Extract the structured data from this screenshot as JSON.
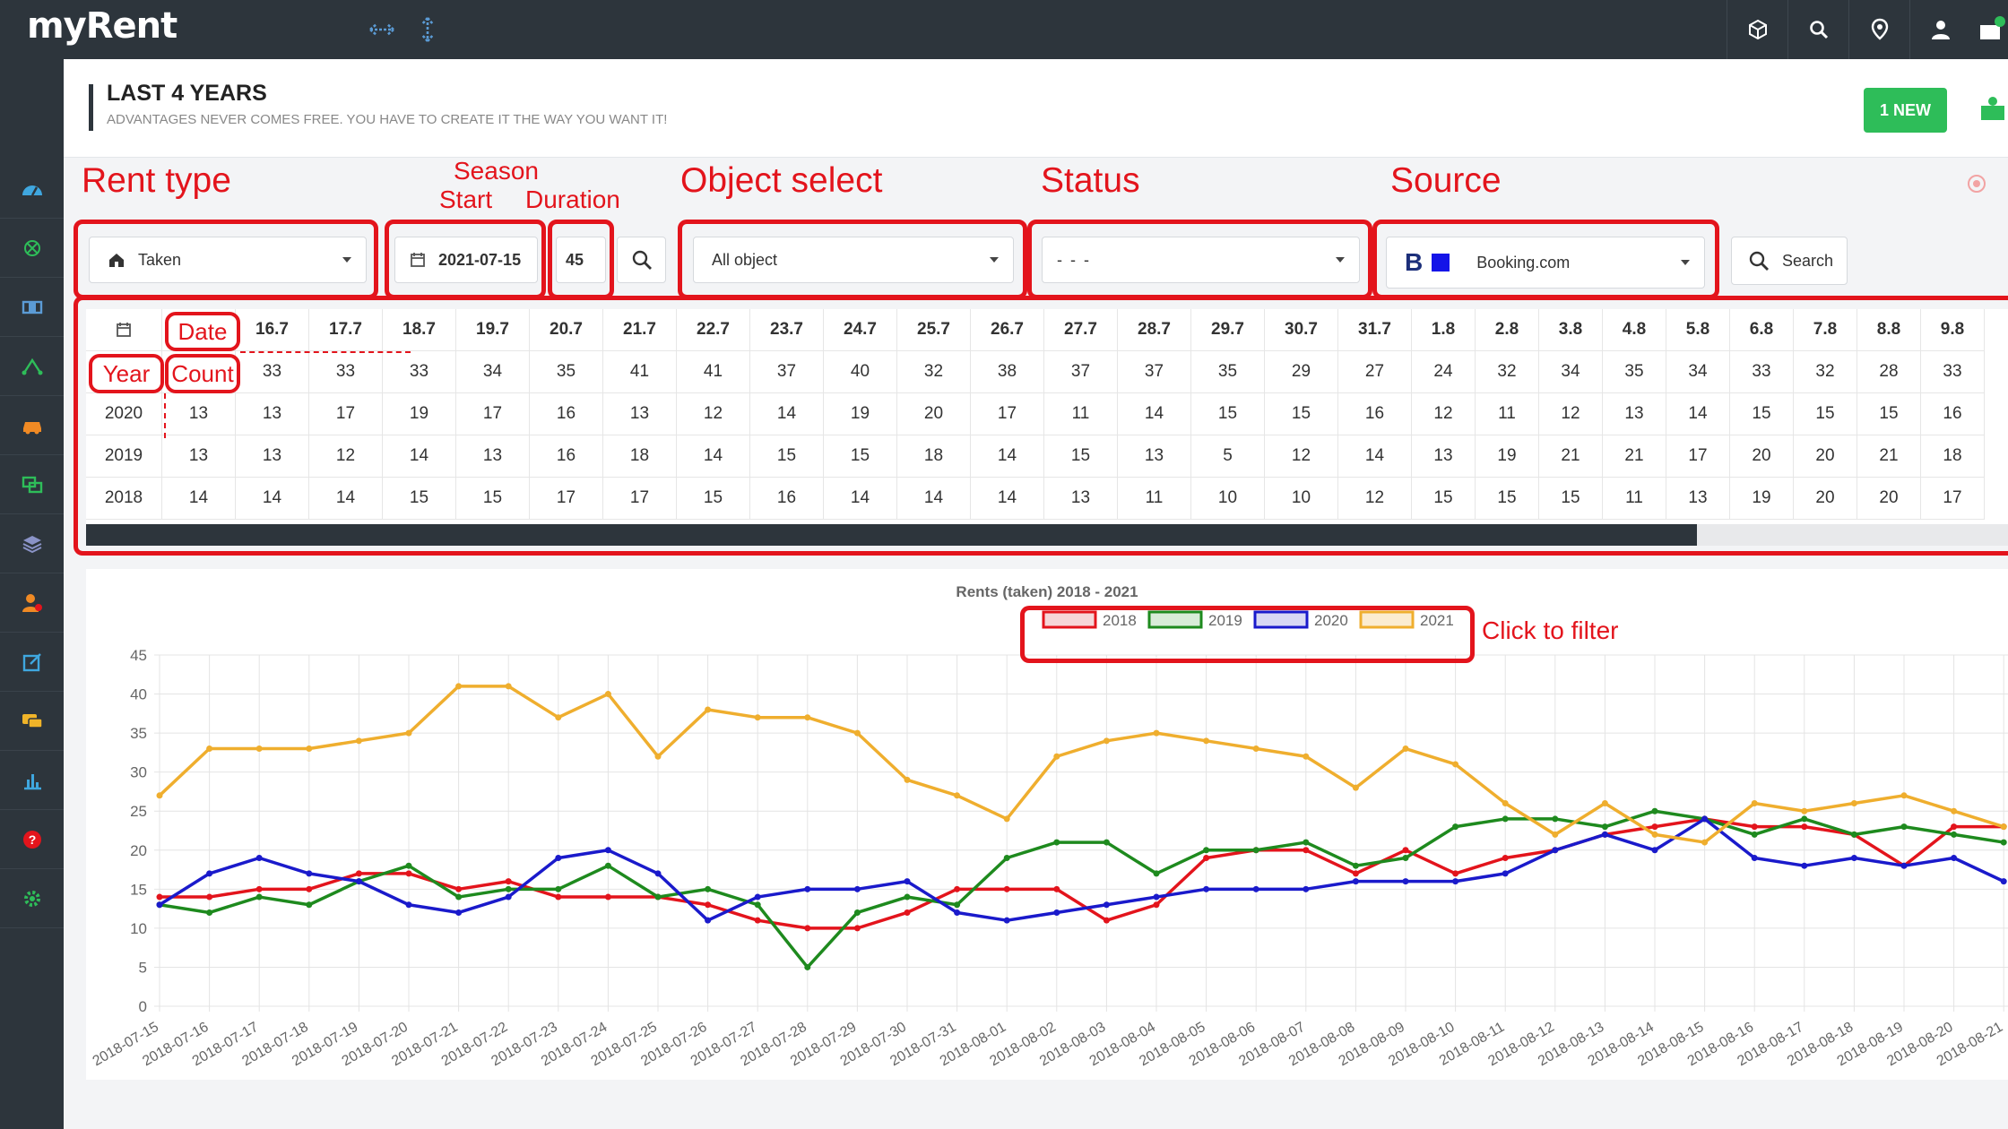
{
  "app": {
    "logo": "myRent"
  },
  "header": {
    "title": "LAST 4 YEARS",
    "subtitle": "ADVANTAGES NEVER COMES FREE. YOU HAVE TO CREATE IT THE WAY YOU WANT IT!",
    "new_button": "1 NEW"
  },
  "annotations": {
    "rent_type": "Rent type",
    "season": "Season",
    "start": "Start",
    "duration": "Duration",
    "object_select": "Object select",
    "status": "Status",
    "source": "Source",
    "click_to_filter": "Click to filter"
  },
  "filters": {
    "rent_type": "Taken",
    "start_date": "2021-07-15",
    "duration": "45",
    "object": "All object",
    "status": "- - -",
    "source": "Booking.com",
    "search_label": "Search"
  },
  "table": {
    "date_label": "Date",
    "year_label": "Year",
    "count_label": "Count",
    "dates": [
      "16.7",
      "17.7",
      "18.7",
      "19.7",
      "20.7",
      "21.7",
      "22.7",
      "23.7",
      "24.7",
      "25.7",
      "26.7",
      "27.7",
      "28.7",
      "29.7",
      "30.7",
      "31.7",
      "1.8",
      "2.8",
      "3.8",
      "4.8",
      "5.8",
      "6.8",
      "7.8",
      "8.8",
      "9.8"
    ],
    "rows": [
      {
        "year": "",
        "values": [
          "33",
          "33",
          "33",
          "34",
          "35",
          "41",
          "41",
          "37",
          "40",
          "32",
          "38",
          "37",
          "37",
          "35",
          "29",
          "27",
          "24",
          "32",
          "34",
          "35",
          "34",
          "33",
          "32",
          "28",
          "33"
        ]
      },
      {
        "year": "2020",
        "values": [
          "13",
          "17",
          "19",
          "17",
          "16",
          "13",
          "12",
          "14",
          "19",
          "20",
          "17",
          "11",
          "14",
          "15",
          "15",
          "16",
          "12",
          "11",
          "12",
          "13",
          "14",
          "15",
          "15",
          "15",
          "16"
        ]
      },
      {
        "year": "2019",
        "values": [
          "13",
          "12",
          "14",
          "13",
          "16",
          "18",
          "14",
          "15",
          "15",
          "18",
          "14",
          "15",
          "13",
          "5",
          "12",
          "14",
          "13",
          "19",
          "21",
          "21",
          "17",
          "20",
          "20",
          "21",
          "18"
        ]
      },
      {
        "year": "2018",
        "values": [
          "14",
          "14",
          "15",
          "15",
          "17",
          "17",
          "15",
          "16",
          "14",
          "14",
          "14",
          "13",
          "11",
          "10",
          "10",
          "12",
          "15",
          "15",
          "15",
          "11",
          "13",
          "19",
          "20",
          "20",
          "17"
        ]
      }
    ],
    "first_col_values": [
      "",
      "13",
      "13",
      "14"
    ]
  },
  "chart_data": {
    "type": "line",
    "title": "Rents (taken) 2018 - 2021",
    "ylim": [
      0,
      45
    ],
    "yticks": [
      0,
      5,
      10,
      15,
      20,
      25,
      30,
      35,
      40,
      45
    ],
    "legend_position": "top-center",
    "categories": [
      "2018-07-15",
      "2018-07-16",
      "2018-07-17",
      "2018-07-18",
      "2018-07-19",
      "2018-07-20",
      "2018-07-21",
      "2018-07-22",
      "2018-07-23",
      "2018-07-24",
      "2018-07-25",
      "2018-07-26",
      "2018-07-27",
      "2018-07-28",
      "2018-07-29",
      "2018-07-30",
      "2018-07-31",
      "2018-08-01",
      "2018-08-02",
      "2018-08-03",
      "2018-08-04",
      "2018-08-05",
      "2018-08-06",
      "2018-08-07",
      "2018-08-08",
      "2018-08-09",
      "2018-08-10",
      "2018-08-11",
      "2018-08-12",
      "2018-08-13",
      "2018-08-14",
      "2018-08-15",
      "2018-08-16",
      "2018-08-17",
      "2018-08-18",
      "2018-08-19",
      "2018-08-20",
      "2018-08-21"
    ],
    "series": [
      {
        "name": "2018",
        "color": "#e3141c",
        "fill": "#f6d6d8",
        "values": [
          14,
          14,
          15,
          15,
          17,
          17,
          15,
          16,
          14,
          14,
          14,
          13,
          11,
          10,
          10,
          12,
          15,
          15,
          15,
          11,
          13,
          19,
          20,
          20,
          17,
          20,
          17,
          19,
          20,
          22,
          23,
          24,
          23,
          23,
          22,
          18,
          23,
          23
        ]
      },
      {
        "name": "2019",
        "color": "#1e8a1e",
        "fill": "#d8ecd8",
        "values": [
          13,
          12,
          14,
          13,
          16,
          18,
          14,
          15,
          15,
          18,
          14,
          15,
          13,
          5,
          12,
          14,
          13,
          19,
          21,
          21,
          17,
          20,
          20,
          21,
          18,
          19,
          23,
          24,
          24,
          23,
          25,
          24,
          22,
          24,
          22,
          23,
          22,
          21
        ]
      },
      {
        "name": "2020",
        "color": "#1a1acb",
        "fill": "#d8d8f4",
        "values": [
          13,
          17,
          19,
          17,
          16,
          13,
          12,
          14,
          19,
          20,
          17,
          11,
          14,
          15,
          15,
          16,
          12,
          11,
          12,
          13,
          14,
          15,
          15,
          15,
          16,
          16,
          16,
          17,
          20,
          22,
          20,
          24,
          19,
          18,
          19,
          18,
          19,
          16
        ]
      },
      {
        "name": "2021",
        "color": "#efae2e",
        "fill": "#fbecd0",
        "values": [
          27,
          33,
          33,
          33,
          34,
          35,
          41,
          41,
          37,
          40,
          32,
          38,
          37,
          37,
          35,
          29,
          27,
          24,
          32,
          34,
          35,
          34,
          33,
          32,
          28,
          33,
          31,
          26,
          22,
          26,
          22,
          21,
          26,
          25,
          26,
          27,
          25,
          23
        ]
      }
    ]
  }
}
